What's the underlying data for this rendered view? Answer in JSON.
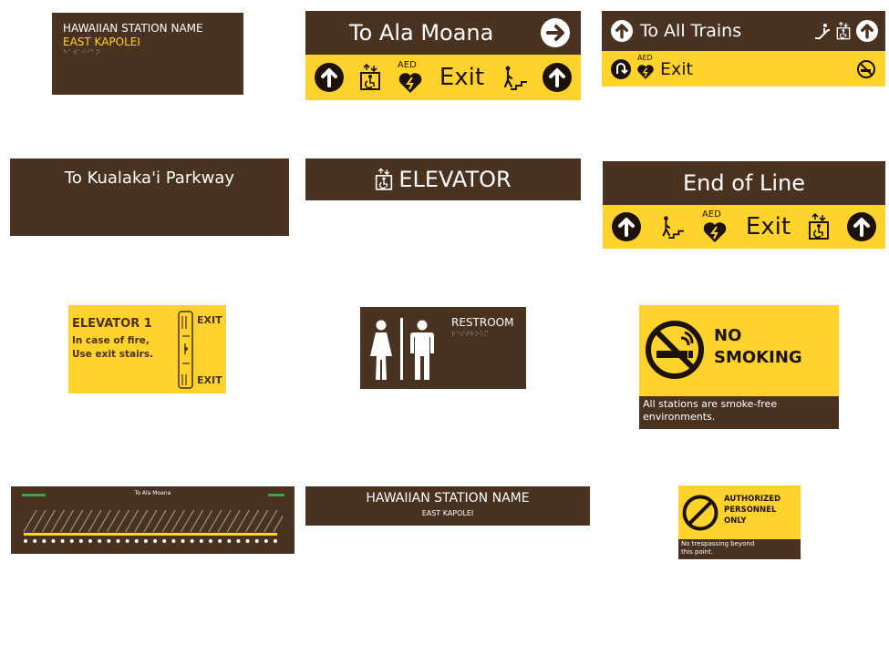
{
  "station_id_sign": {
    "title": "HAWAIIAN STATION NAME",
    "station": "EAST KAPOLEI",
    "braille": "⠓⠁⠺⠁⠊⠊⠁⠝"
  },
  "ala_moana_sign": {
    "heading": "To Ala Moana",
    "aed": "AED",
    "exit": "Exit"
  },
  "all_trains_sign": {
    "heading": "To All Trains",
    "aed": "AED",
    "exit": "Exit"
  },
  "kualakai_sign": {
    "heading": "To Kualaka'i Parkway"
  },
  "elevator_sign": {
    "heading": "ELEVATOR"
  },
  "end_of_line_sign": {
    "heading": "End of Line",
    "aed": "AED",
    "exit": "Exit"
  },
  "elevator1_sign": {
    "title": "ELEVATOR 1",
    "line1": "In case of fire,",
    "line2": "Use exit stairs.",
    "exit_top": "EXIT",
    "exit_bottom": "EXIT"
  },
  "restroom_sign": {
    "label": "RESTROOM",
    "braille": "⠗⠑⠎⠞⠗⠕⠕⠍"
  },
  "no_smoking_sign": {
    "line1": "NO",
    "line2": "SMOKING",
    "footer_line1": "All stations are smoke-free",
    "footer_line2": "environments."
  },
  "route_map_sign": {
    "heading": "To Ala Moana",
    "stop_count": 28
  },
  "station_name_sign": {
    "title": "HAWAIIAN STATION NAME",
    "station": "EAST KAPOLEI"
  },
  "authorized_sign": {
    "line1": "AUTHORIZED",
    "line2": "PERSONNEL",
    "line3": "ONLY",
    "footer_line1": "No trespassing beyond",
    "footer_line2": "this point."
  },
  "colors": {
    "brown": "#4a3220",
    "yellow": "#ffd22c",
    "white": "#ffffff"
  }
}
